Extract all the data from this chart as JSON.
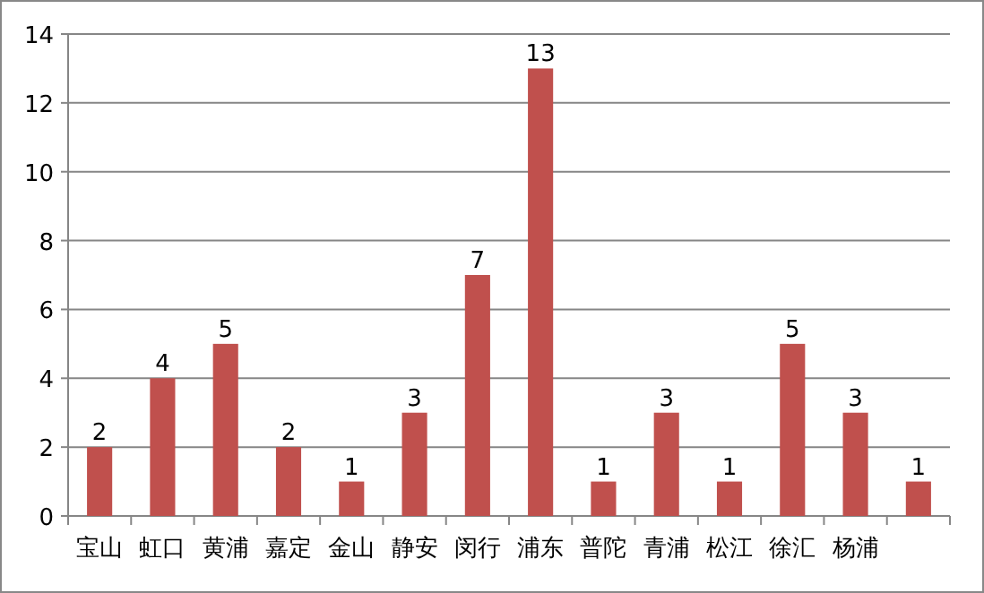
{
  "chart_data": {
    "type": "bar",
    "categories": [
      "宝山",
      "虹口",
      "黄浦",
      "嘉定",
      "金山",
      "静安",
      "闵行",
      "浦东",
      "普陀",
      "青浦",
      "松江",
      "徐汇",
      "杨浦",
      null
    ],
    "values": [
      2,
      4,
      5,
      2,
      1,
      3,
      7,
      13,
      1,
      3,
      1,
      5,
      3,
      1
    ],
    "color": "#c0504d",
    "ylim": [
      0,
      14
    ],
    "yticks": [
      0,
      2,
      4,
      6,
      8,
      10,
      12,
      14
    ],
    "grid": "y",
    "data_labels": true
  }
}
